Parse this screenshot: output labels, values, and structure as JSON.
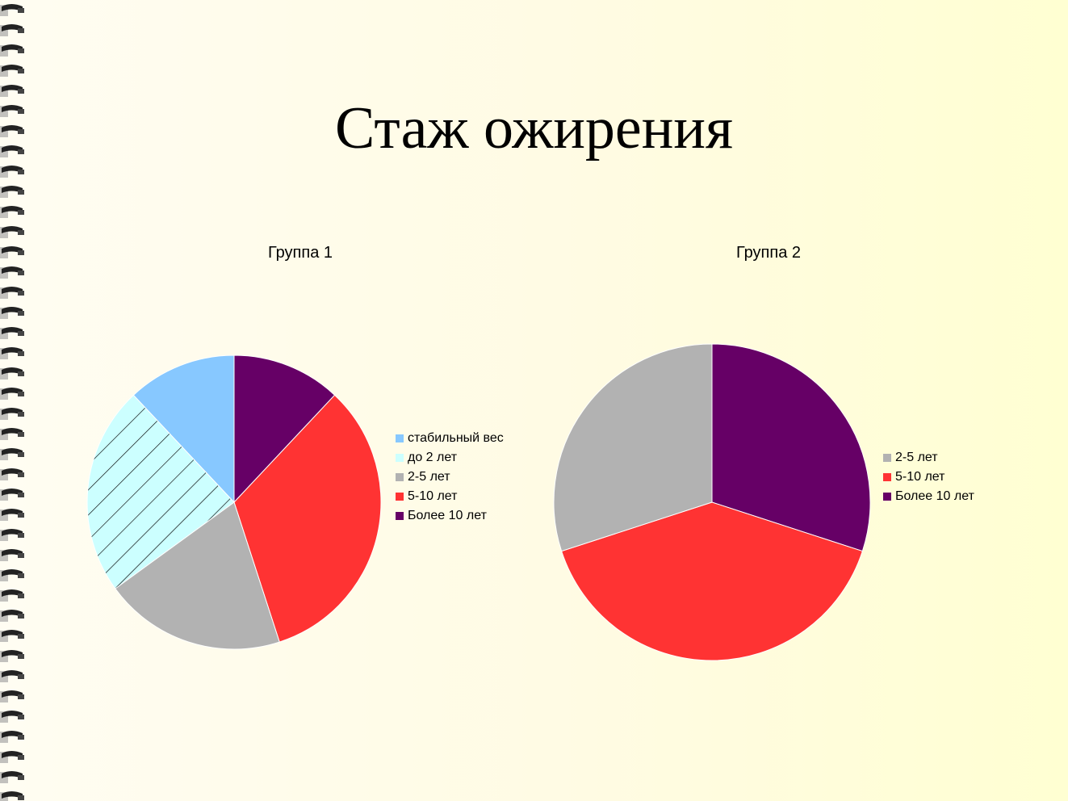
{
  "slide": {
    "title": "Стаж ожирения"
  },
  "chart_data": [
    {
      "type": "pie",
      "title": "Группа 1",
      "legend_position": "right",
      "categories": [
        "стабильный вес",
        "до 2 лет",
        "2-5 лет",
        "5-10 лет",
        "Более 10 лет"
      ],
      "values": [
        12,
        23,
        20,
        33,
        12
      ],
      "colors": [
        "#87c8ff",
        "#ccffff",
        "#b2b2b2",
        "#ff3333",
        "#660066"
      ],
      "hatched": [
        false,
        true,
        false,
        false,
        false
      ]
    },
    {
      "type": "pie",
      "title": "Группа 2",
      "legend_position": "right",
      "categories": [
        "2-5 лет",
        "5-10 лет",
        "Более 10 лет"
      ],
      "values": [
        30,
        40,
        30
      ],
      "colors": [
        "#b2b2b2",
        "#ff3333",
        "#660066"
      ],
      "hatched": [
        false,
        false,
        false
      ]
    }
  ]
}
